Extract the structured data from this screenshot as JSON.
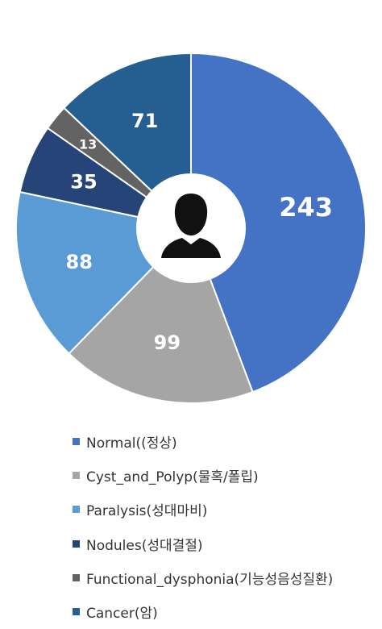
{
  "chart_data": {
    "type": "pie",
    "categories": [
      "Normal((정상)",
      "Cyst_and_Polyp(물혹/폴립)",
      "Paralysis(성대마비)",
      "Nodules(성대결절)",
      "Functional_dysphonia(기능성음성질환)",
      "Cancer(암)"
    ],
    "values": [
      243,
      99,
      88,
      35,
      13,
      71
    ],
    "labels": [
      "243",
      "99",
      "88",
      "35",
      "13",
      "71"
    ],
    "colors": [
      "#4472c4",
      "#a5a5a5",
      "#5b9bd5",
      "#264478",
      "#636363",
      "#255e91"
    ],
    "center_icon": "person-silhouette-icon",
    "legend_position": "bottom"
  }
}
